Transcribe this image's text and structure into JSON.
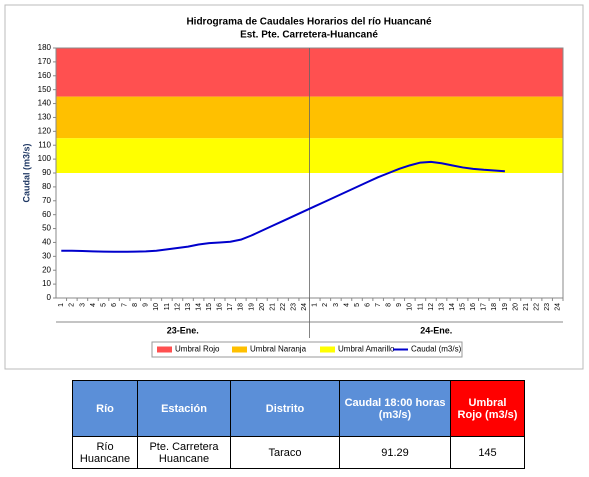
{
  "chart_data": {
    "type": "line",
    "title": "Hidrograma de Caudales Horarios del río Huancané",
    "subtitle": "Est. Pte. Carretera-Huancané",
    "y_label": "Caudal  (m3/s)",
    "categories": [
      1,
      2,
      3,
      4,
      5,
      6,
      7,
      8,
      9,
      10,
      11,
      12,
      13,
      14,
      15,
      16,
      17,
      18,
      19,
      20,
      21,
      22,
      23,
      24,
      1,
      2,
      3,
      4,
      5,
      6,
      7,
      8,
      9,
      10,
      11,
      12,
      13,
      14,
      15,
      16,
      17,
      18,
      19,
      20,
      21,
      22,
      23,
      24
    ],
    "groups": [
      "23-Ene.",
      "24-Ene."
    ],
    "ylim": [
      0,
      180
    ],
    "yticks": [
      0,
      10,
      20,
      30,
      40,
      50,
      60,
      70,
      80,
      90,
      100,
      110,
      120,
      130,
      140,
      150,
      160,
      170,
      180
    ],
    "series": [
      {
        "name": "Umbral Rojo",
        "color": "#ff5050",
        "band": [
          145,
          180
        ]
      },
      {
        "name": "Umbral Naranja",
        "color": "#ffc000",
        "band": [
          115,
          145
        ]
      },
      {
        "name": "Umbral Amarillo",
        "color": "#ffff00",
        "band": [
          90,
          115
        ]
      },
      {
        "name": "Caudal (m3/s)",
        "color": "#0000cc",
        "values": [
          34,
          34,
          33.8,
          33.6,
          33.4,
          33.3,
          33.3,
          33.4,
          33.6,
          34,
          35,
          36,
          37,
          38.5,
          39.5,
          40,
          40.5,
          42,
          45,
          48.5,
          52,
          55.5,
          59,
          62.5,
          66,
          69.5,
          73,
          76.5,
          80,
          83.5,
          87,
          90,
          93,
          95.5,
          97.5,
          98,
          97,
          95.5,
          94,
          93,
          92.3,
          91.8,
          91.29,
          null,
          null,
          null,
          null,
          null
        ]
      }
    ]
  },
  "table": {
    "header": [
      "Río",
      "Estación",
      "Distrito",
      "Caudal 18:00 horas (m3/s)",
      "Umbral Rojo (m3/s)"
    ],
    "rows": [
      [
        "Río Huancane",
        "Pte. Carretera Huancane",
        "Taraco",
        91.29,
        145
      ]
    ]
  }
}
